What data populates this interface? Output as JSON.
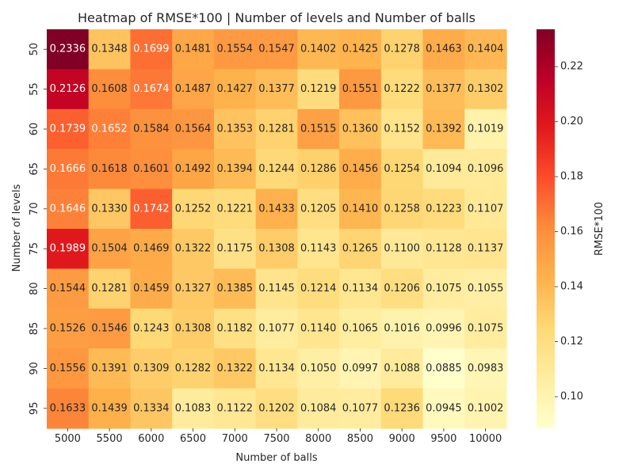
{
  "chart_data": {
    "type": "heatmap",
    "title": "Heatmap of RMSE*100 | Number of levels and Number of balls",
    "xlabel": "Number of balls",
    "ylabel": "Number of levels",
    "x_categories": [
      "5000",
      "5500",
      "6000",
      "6500",
      "7000",
      "7500",
      "8000",
      "8500",
      "9000",
      "9500",
      "10000"
    ],
    "y_categories": [
      "50",
      "55",
      "60",
      "65",
      "70",
      "75",
      "80",
      "85",
      "90",
      "95"
    ],
    "values": [
      [
        "0.2336",
        "0.1348",
        "0.1699",
        "0.1481",
        "0.1554",
        "0.1547",
        "0.1402",
        "0.1425",
        "0.1278",
        "0.1463",
        "0.1404"
      ],
      [
        "0.2126",
        "0.1608",
        "0.1674",
        "0.1487",
        "0.1427",
        "0.1377",
        "0.1219",
        "0.1551",
        "0.1222",
        "0.1377",
        "0.1302"
      ],
      [
        "0.1739",
        "0.1652",
        "0.1584",
        "0.1564",
        "0.1353",
        "0.1281",
        "0.1515",
        "0.1360",
        "0.1152",
        "0.1392",
        "0.1019"
      ],
      [
        "0.1666",
        "0.1618",
        "0.1601",
        "0.1492",
        "0.1394",
        "0.1244",
        "0.1286",
        "0.1456",
        "0.1254",
        "0.1094",
        "0.1096"
      ],
      [
        "0.1646",
        "0.1330",
        "0.1742",
        "0.1252",
        "0.1221",
        "0.1433",
        "0.1205",
        "0.1410",
        "0.1258",
        "0.1223",
        "0.1107"
      ],
      [
        "0.1989",
        "0.1504",
        "0.1469",
        "0.1322",
        "0.1175",
        "0.1308",
        "0.1143",
        "0.1265",
        "0.1100",
        "0.1128",
        "0.1137"
      ],
      [
        "0.1544",
        "0.1281",
        "0.1459",
        "0.1327",
        "0.1385",
        "0.1145",
        "0.1214",
        "0.1134",
        "0.1206",
        "0.1075",
        "0.1055"
      ],
      [
        "0.1526",
        "0.1546",
        "0.1243",
        "0.1308",
        "0.1182",
        "0.1077",
        "0.1140",
        "0.1065",
        "0.1016",
        "0.0996",
        "0.1075"
      ],
      [
        "0.1556",
        "0.1391",
        "0.1309",
        "0.1282",
        "0.1322",
        "0.1134",
        "0.1050",
        "0.0997",
        "0.1088",
        "0.0885",
        "0.0983"
      ],
      [
        "0.1633",
        "0.1439",
        "0.1334",
        "0.1083",
        "0.1122",
        "0.1202",
        "0.1084",
        "0.1077",
        "0.1236",
        "0.0945",
        "0.1002"
      ]
    ],
    "colormap": "YlOrRd",
    "colorbar": {
      "label": "RMSE*100",
      "ticks": [
        "0.10",
        "0.12",
        "0.14",
        "0.16",
        "0.18",
        "0.20",
        "0.22"
      ],
      "range": [
        0.0885,
        0.2336
      ]
    }
  }
}
